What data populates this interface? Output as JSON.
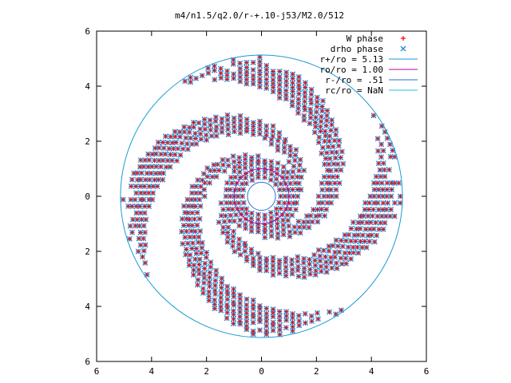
{
  "chart_data": {
    "type": "scatter",
    "title": "m4/n1.5/q2.0/r-+.10-j53/M2.0/512",
    "xlim": [
      -6,
      6
    ],
    "ylim": [
      -6,
      6
    ],
    "xticks": [
      "6",
      "4",
      "2",
      "0",
      "2",
      "4",
      "6"
    ],
    "yticks": [
      "6",
      "4",
      "2",
      "0",
      "2",
      "4",
      "6"
    ],
    "legend_position": "top-right",
    "grid": false,
    "series": [
      {
        "name": "W phase",
        "marker": "plus",
        "color": "#ff0000"
      },
      {
        "name": "drho phase",
        "marker": "cross",
        "color": "#1f8fd8"
      },
      {
        "name": "r+/ro = 5.13",
        "marker": "circle",
        "radius": 5.13,
        "color": "#1a9ad6"
      },
      {
        "name": "ro/ro = 1.00",
        "marker": "circle",
        "radius": 1.0,
        "color": "#c0008f"
      },
      {
        "name": "r-/ro = .51",
        "marker": "circle",
        "radius": 0.51,
        "color": "#2a6fd1"
      },
      {
        "name": "rc/ro = NaN",
        "marker": "circle",
        "radius": null,
        "color": "#19c8d8"
      }
    ],
    "spiral": {
      "arms": 4,
      "inner_radius": 0.7,
      "outer_radius": 5.1
    }
  }
}
